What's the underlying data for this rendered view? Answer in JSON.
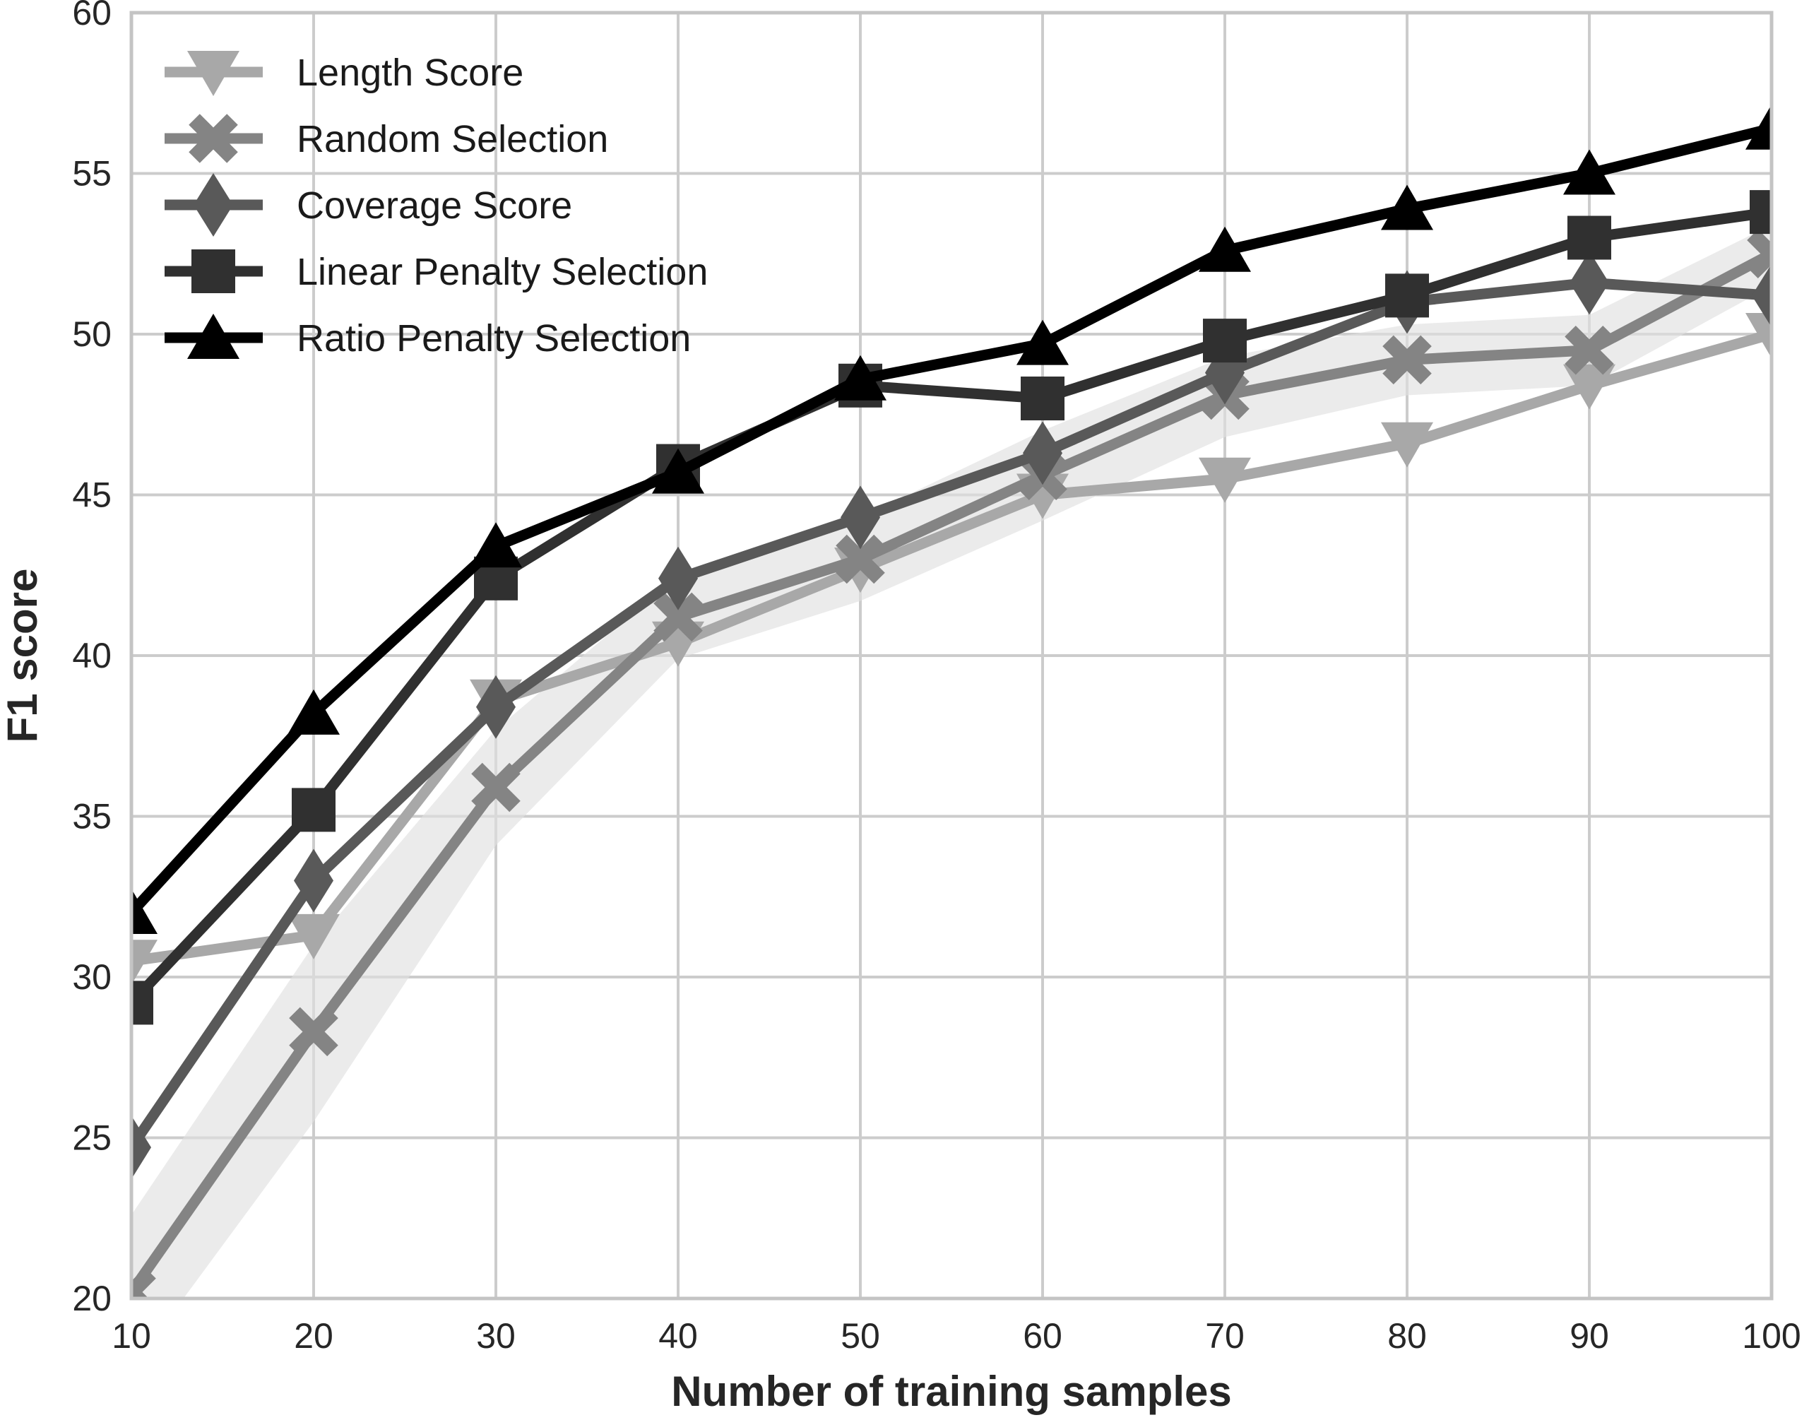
{
  "chart_data": {
    "type": "line",
    "title": "",
    "xlabel": "Number of training samples",
    "ylabel": "F1 score",
    "xlim": [
      10,
      100
    ],
    "ylim": [
      20,
      60
    ],
    "xticks": [
      10,
      20,
      30,
      40,
      50,
      60,
      70,
      80,
      90,
      100
    ],
    "yticks": [
      20,
      25,
      30,
      35,
      40,
      45,
      50,
      55,
      60
    ],
    "grid": true,
    "grid_color": "#cccccc",
    "frame_color": "#c4c4c4",
    "legend_position": "upper left",
    "x": [
      10,
      20,
      30,
      40,
      50,
      60,
      70,
      80,
      90,
      100
    ],
    "series": [
      {
        "name": "Length Score",
        "marker": "triangle-down-icon",
        "color": "#a8a8a8",
        "values": [
          30.5,
          31.3,
          38.6,
          40.4,
          42.7,
          45.0,
          45.5,
          46.6,
          48.4,
          50.0
        ]
      },
      {
        "name": "Random Selection",
        "marker": "x-icon",
        "color": "#848484",
        "values": [
          20.2,
          28.3,
          35.9,
          41.2,
          43.0,
          45.6,
          48.1,
          49.2,
          49.5,
          52.5
        ],
        "band": {
          "upper": [
            22.6,
            31.0,
            37.7,
            42.5,
            44.3,
            47.0,
            49.3,
            50.3,
            50.6,
            53.4
          ],
          "lower": [
            17.8,
            25.5,
            34.1,
            39.9,
            41.7,
            44.2,
            46.8,
            48.1,
            48.4,
            51.5
          ],
          "color": "#e0e0e0"
        }
      },
      {
        "name": "Coverage Score",
        "marker": "diamond-icon",
        "color": "#595959",
        "values": [
          24.7,
          33.0,
          38.4,
          42.4,
          44.3,
          46.3,
          48.8,
          51.0,
          51.6,
          51.2
        ]
      },
      {
        "name": "Linear Penalty Selection",
        "marker": "square-icon",
        "color": "#303030",
        "values": [
          29.2,
          35.2,
          42.4,
          45.9,
          48.4,
          48.0,
          49.8,
          51.2,
          53.0,
          53.8
        ]
      },
      {
        "name": "Ratio Penalty Selection",
        "marker": "triangle-up-icon",
        "color": "#000000",
        "values": [
          32.0,
          38.2,
          43.4,
          45.7,
          48.6,
          49.7,
          52.6,
          53.9,
          55.0,
          56.4
        ]
      }
    ]
  }
}
